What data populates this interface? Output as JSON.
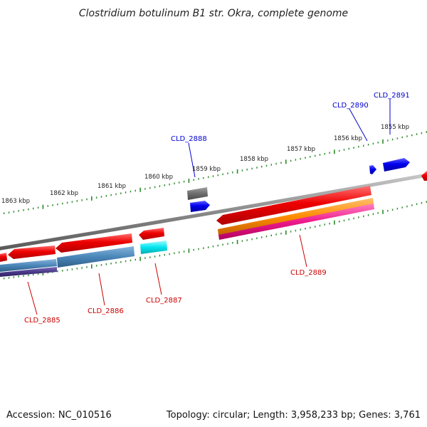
{
  "title": "Clostridium botulinum B1 str. Okra, complete genome",
  "footer": {
    "accession": "Accession: NC_010516",
    "summary": "Topology: circular; Length: 3,958,233 bp; Genes: 3,761"
  },
  "ticks": [
    {
      "label": "1863 kbp"
    },
    {
      "label": "1862 kbp"
    },
    {
      "label": "1861 kbp"
    },
    {
      "label": "1860 kbp"
    },
    {
      "label": "1859 kbp"
    },
    {
      "label": "1858 kbp"
    },
    {
      "label": "1857 kbp"
    },
    {
      "label": "1856 kbp"
    },
    {
      "label": "1855 kbp"
    }
  ],
  "genes": [
    {
      "label": "CLD_2885",
      "strand": "reverse"
    },
    {
      "label": "CLD_2886",
      "strand": "reverse"
    },
    {
      "label": "CLD_2887",
      "strand": "reverse"
    },
    {
      "label": "CLD_2888",
      "strand": "forward"
    },
    {
      "label": "CLD_2889",
      "strand": "reverse"
    },
    {
      "label": "CLD_2890",
      "strand": "forward"
    },
    {
      "label": "CLD_2891",
      "strand": "forward"
    }
  ],
  "colors": {
    "backbone": "#8a8a8a",
    "tick": "#2a8a2a",
    "gene_red": "#ee0000",
    "gene_blue": "#0000ee",
    "gene_steel": "#4a86b8",
    "gene_purple": "#4b3a8a",
    "gene_cyan": "#00e5ee",
    "gene_gray": "#6e6e6e",
    "gene_orange": "#ff8c00",
    "gene_magenta": "#ee1a8a",
    "label_forward": "#0000cc",
    "label_reverse": "#cc0000"
  }
}
